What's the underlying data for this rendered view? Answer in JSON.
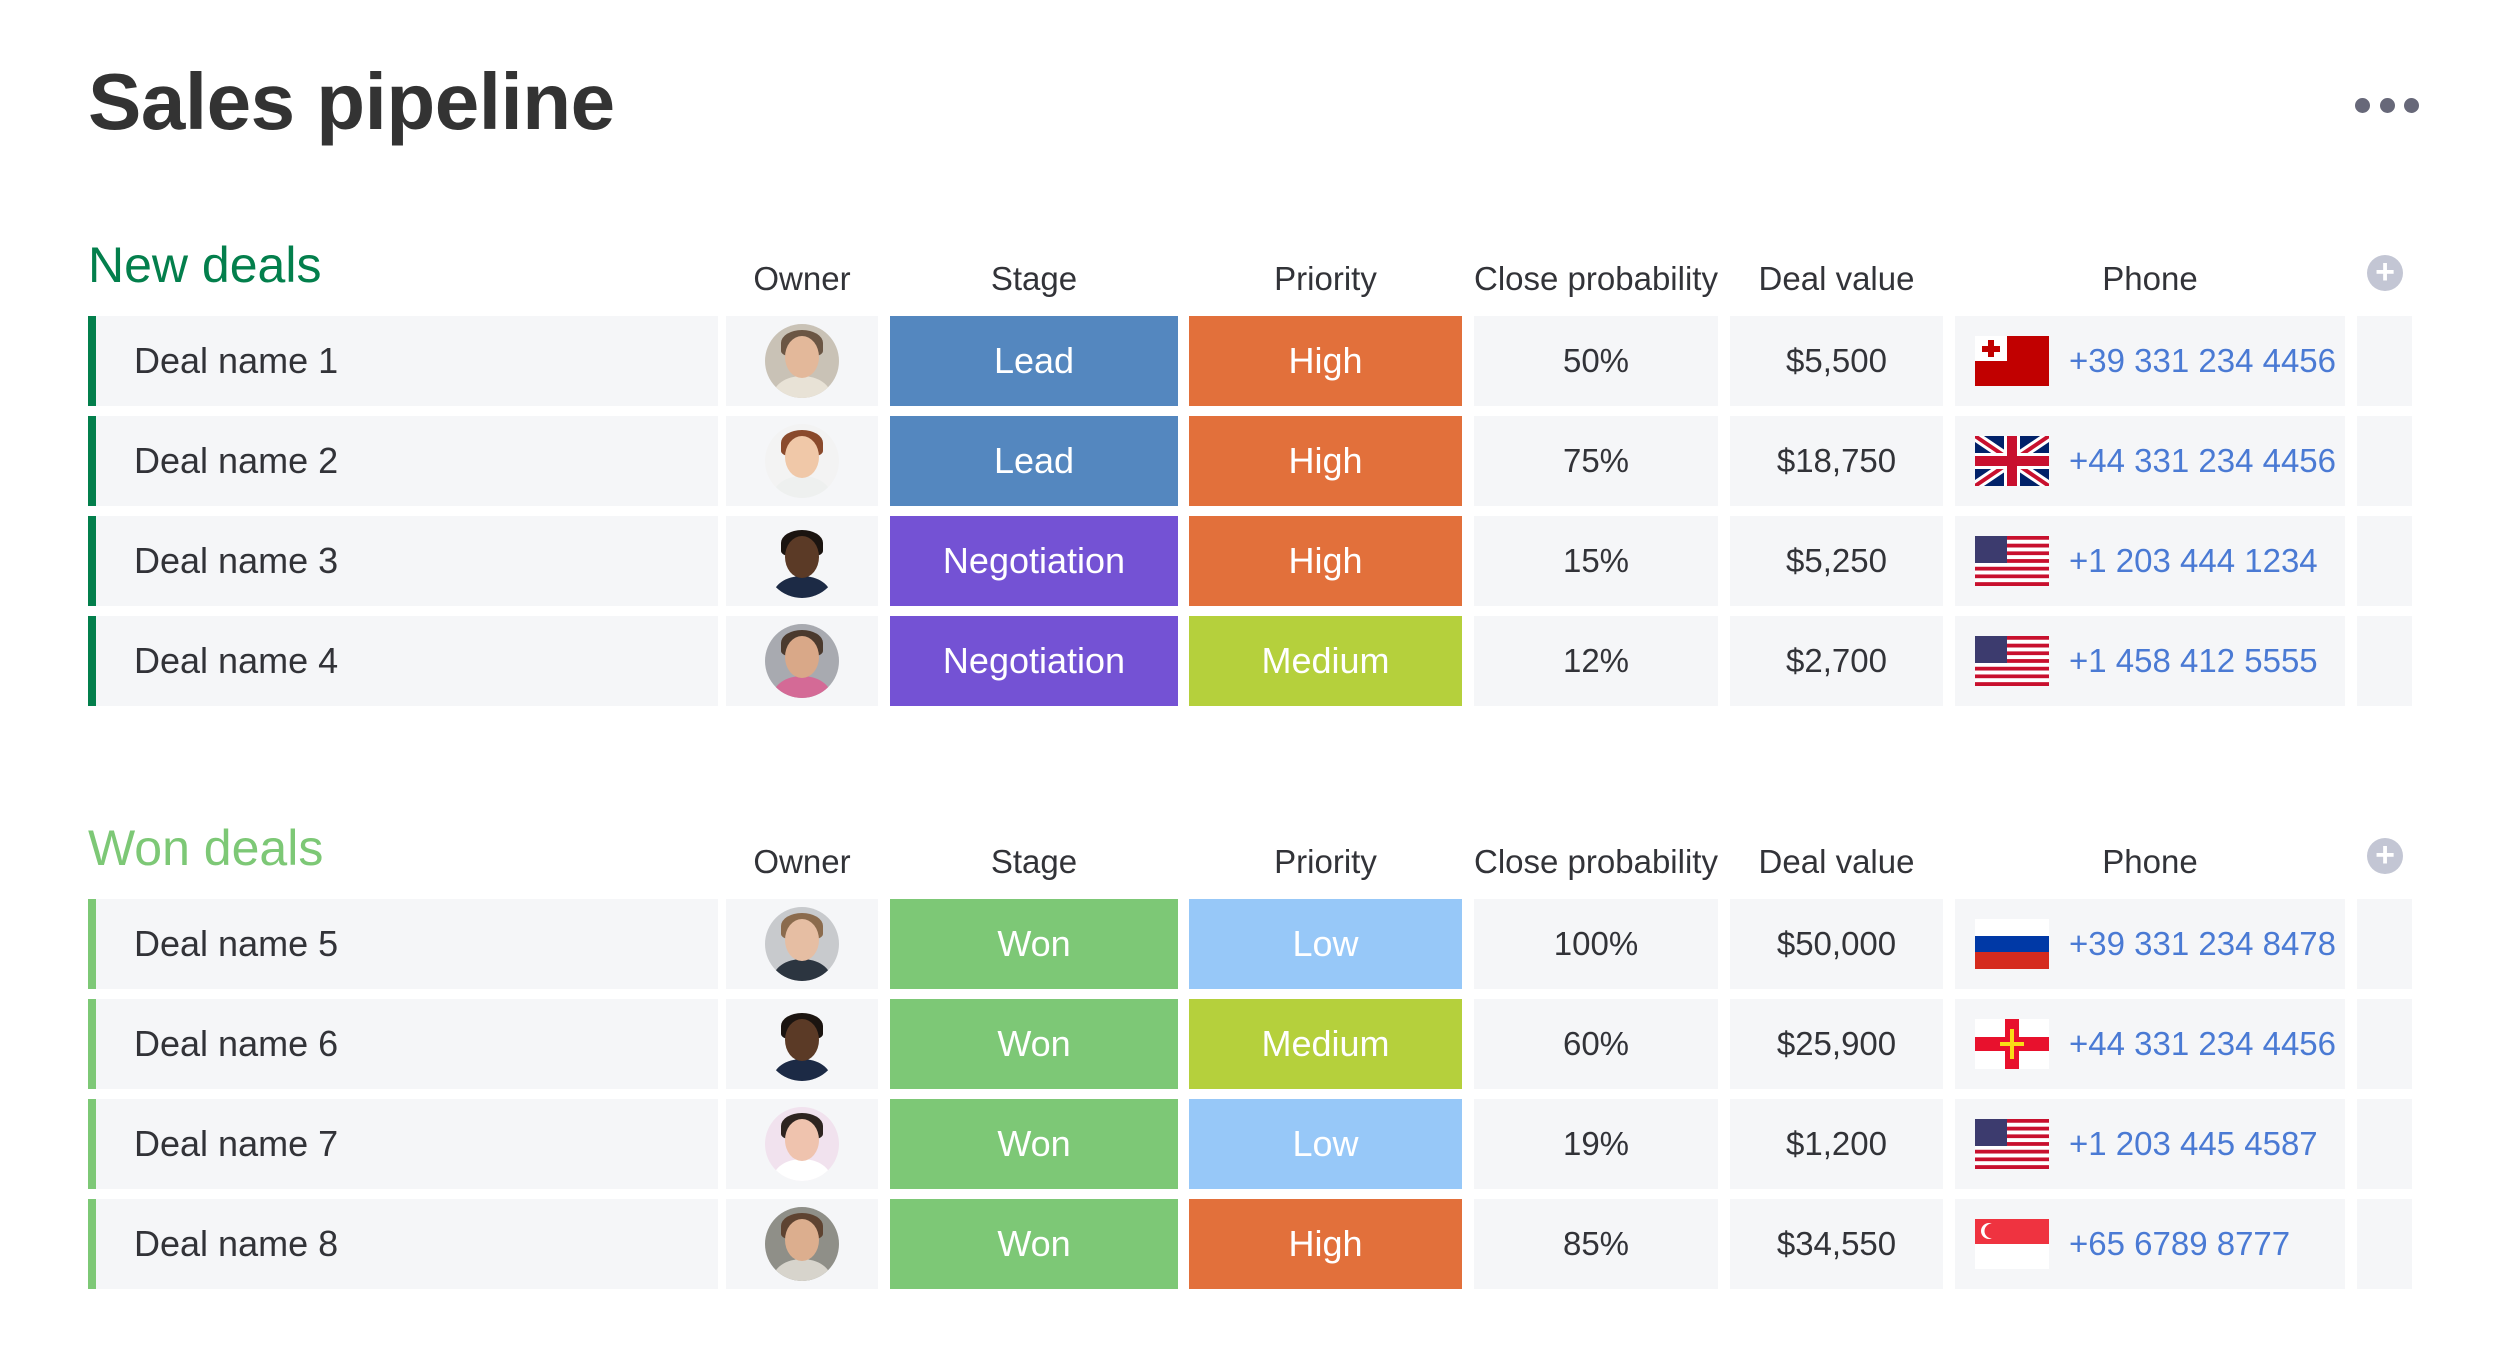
{
  "page": {
    "title": "Sales pipeline",
    "more_icon": "ellipsis-icon"
  },
  "columns": {
    "owner": "Owner",
    "stage": "Stage",
    "priority": "Priority",
    "close_probability": "Close probability",
    "deal_value": "Deal value",
    "phone": "Phone",
    "add_icon": "plus-circle-icon"
  },
  "colors": {
    "new_deals_group": "#037f4c",
    "won_deals_group": "#7dc876",
    "stage_lead": "#5487bf",
    "stage_negotiation": "#7452d4",
    "stage_won": "#7dc876",
    "priority_high": "#e2703b",
    "priority_medium": "#b5d03c",
    "priority_low": "#97c8f8",
    "phone_link": "#4a7ad4"
  },
  "groups": [
    {
      "title": "New deals",
      "color": "#037f4c",
      "rows": [
        {
          "name": "Deal name 1",
          "owner_avatar": "avatar-woman-curly-hair",
          "stage": "Lead",
          "stage_color": "#5487bf",
          "priority": "High",
          "priority_color": "#e2703b",
          "probability": "50%",
          "value": "$5,500",
          "flag": "tonga-flag-icon",
          "phone": "+39 331 234 4456"
        },
        {
          "name": "Deal name 2",
          "owner_avatar": "avatar-woman-red-hair",
          "stage": "Lead",
          "stage_color": "#5487bf",
          "priority": "High",
          "priority_color": "#e2703b",
          "probability": "75%",
          "value": "$18,750",
          "flag": "uk-flag-icon",
          "phone": "+44 331 234 4456"
        },
        {
          "name": "Deal name 3",
          "owner_avatar": "avatar-man-dark",
          "stage": "Negotiation",
          "stage_color": "#7452d4",
          "priority": "High",
          "priority_color": "#e2703b",
          "probability": "15%",
          "value": "$5,250",
          "flag": "us-flag-icon",
          "phone": "+1 203 444 1234"
        },
        {
          "name": "Deal name 4",
          "owner_avatar": "avatar-man-beard",
          "stage": "Negotiation",
          "stage_color": "#7452d4",
          "priority": "Medium",
          "priority_color": "#b5d03c",
          "probability": "12%",
          "value": "$2,700",
          "flag": "us-flag-icon",
          "phone": "+1 458 412 5555"
        }
      ]
    },
    {
      "title": "Won deals",
      "color": "#7dc876",
      "rows": [
        {
          "name": "Deal name 5",
          "owner_avatar": "avatar-man-light",
          "stage": "Won",
          "stage_color": "#7dc876",
          "priority": "Low",
          "priority_color": "#97c8f8",
          "probability": "100%",
          "value": "$50,000",
          "flag": "russia-flag-icon",
          "phone": "+39 331 234 8478"
        },
        {
          "name": "Deal name 6",
          "owner_avatar": "avatar-man-dark",
          "stage": "Won",
          "stage_color": "#7dc876",
          "priority": "Medium",
          "priority_color": "#b5d03c",
          "probability": "60%",
          "value": "$25,900",
          "flag": "guernsey-flag-icon",
          "phone": "+44 331 234 4456"
        },
        {
          "name": "Deal name 7",
          "owner_avatar": "avatar-woman-dark-hair",
          "stage": "Won",
          "stage_color": "#7dc876",
          "priority": "Low",
          "priority_color": "#97c8f8",
          "probability": "19%",
          "value": "$1,200",
          "flag": "us-flag-icon",
          "phone": "+1 203 445 4587"
        },
        {
          "name": "Deal name 8",
          "owner_avatar": "avatar-woman-smiling",
          "stage": "Won",
          "stage_color": "#7dc876",
          "priority": "High",
          "priority_color": "#e2703b",
          "probability": "85%",
          "value": "$34,550",
          "flag": "singapore-flag-icon",
          "phone": "+65 6789 8777"
        }
      ]
    }
  ]
}
